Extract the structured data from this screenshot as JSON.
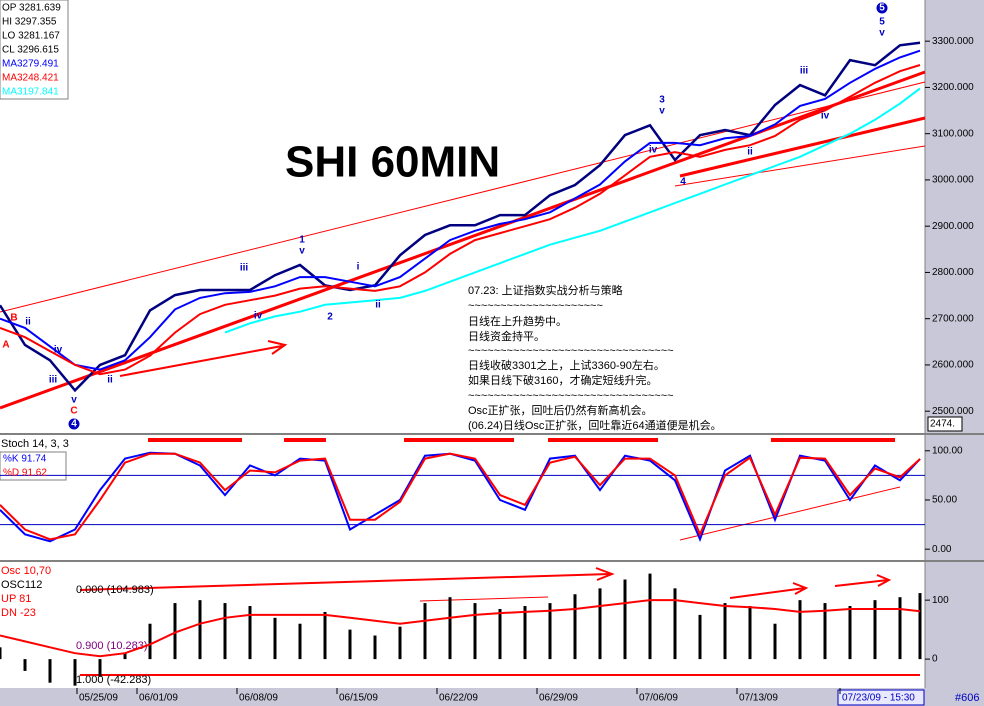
{
  "chart_data": [
    {
      "type": "line",
      "title": "SHI 60MIN",
      "info": [
        "OP 3281.639",
        "HI 3297.355",
        "LO 3281.167",
        "CL 3296.615"
      ],
      "x": [
        0,
        5,
        10,
        15,
        20,
        25,
        30,
        35,
        40,
        45,
        50,
        55,
        60,
        65,
        70,
        75,
        80,
        85,
        90,
        95,
        100,
        105,
        110,
        115,
        120,
        125,
        130,
        135,
        140,
        145,
        150,
        155,
        160,
        165,
        170,
        175,
        180,
        184
      ],
      "xlim": [
        0,
        185
      ],
      "xticks": [
        {
          "value": 15.4,
          "label": "05/25/09"
        },
        {
          "value": 27.4,
          "label": "06/01/09"
        },
        {
          "value": 47.4,
          "label": "06/08/09"
        },
        {
          "value": 67.4,
          "label": "06/15/09"
        },
        {
          "value": 87.4,
          "label": "06/22/09"
        },
        {
          "value": 107.4,
          "label": "06/29/09"
        },
        {
          "value": 127.4,
          "label": "07/06/09"
        },
        {
          "value": 147.4,
          "label": "07/13/09"
        },
        {
          "value": 168,
          "label": "07/23/09 - 15:30"
        }
      ],
      "footer_label": "#606",
      "ylim": [
        2455,
        3389
      ],
      "yticks": [
        {
          "value": 2500,
          "label": "2500.000"
        },
        {
          "value": 2600,
          "label": "2600.000"
        },
        {
          "value": 2700,
          "label": "2700.000"
        },
        {
          "value": 2800,
          "label": "2800.000"
        },
        {
          "value": 2900,
          "label": "2900.000"
        },
        {
          "value": 3000,
          "label": "3000.000"
        },
        {
          "value": 3100,
          "label": "3100.000"
        },
        {
          "value": 3200,
          "label": "3200.000"
        },
        {
          "value": 3300,
          "label": "3300.000"
        }
      ],
      "last_label": "2474.",
      "series": [
        {
          "color": "#000080",
          "values": [
            2729,
            2643,
            2610,
            2545,
            2600,
            2621,
            2718,
            2751,
            2762,
            2762,
            2762,
            2794,
            2816,
            2772,
            2762,
            2772,
            2837,
            2881,
            2902,
            2902,
            2924,
            2924,
            2967,
            2989,
            3032,
            3097,
            3118,
            3043,
            3097,
            3108,
            3097,
            3162,
            3205,
            3183,
            3259,
            3248,
            3291,
            3296.615
          ]
        },
        {
          "name": "MA3279.491",
          "color": "#0000ff",
          "values": [
            2700,
            2680,
            2640,
            2600,
            2590,
            2610,
            2660,
            2720,
            2745,
            2755,
            2758,
            2770,
            2790,
            2790,
            2780,
            2770,
            2790,
            2830,
            2870,
            2890,
            2905,
            2915,
            2930,
            2960,
            2990,
            3040,
            3080,
            3080,
            3075,
            3090,
            3095,
            3120,
            3160,
            3175,
            3210,
            3240,
            3265,
            3279.491
          ]
        },
        {
          "name": "MA3248.421",
          "color": "#ff0000",
          "values": [
            2680,
            2660,
            2630,
            2600,
            2580,
            2590,
            2620,
            2670,
            2710,
            2730,
            2740,
            2750,
            2765,
            2770,
            2765,
            2760,
            2770,
            2800,
            2840,
            2870,
            2885,
            2900,
            2915,
            2940,
            2970,
            3010,
            3050,
            3060,
            3050,
            3065,
            3075,
            3095,
            3130,
            3150,
            3180,
            3210,
            3235,
            3248.421
          ]
        },
        {
          "name": "MA3197.841",
          "color": "#00ffff",
          "values": [
            null,
            null,
            null,
            null,
            null,
            null,
            null,
            null,
            null,
            2670,
            2690,
            2705,
            2715,
            2730,
            2735,
            2740,
            2745,
            2760,
            2780,
            2800,
            2820,
            2840,
            2860,
            2875,
            2890,
            2910,
            2930,
            2950,
            2970,
            2990,
            3010,
            3030,
            3050,
            3075,
            3100,
            3130,
            3165,
            3197.841
          ]
        }
      ],
      "commentary": [
        "07.23: 上证指数实战分析与策略",
        "~~~~~~~~~~~~~~~~~~~~~",
        "日线在上升趋势中。",
        "日线资金持平。",
        "~~~~~~~~~~~~~~~~~~~~~~~~~~~~~~~~",
        "日线收破3301之上，上试3360-90左右。",
        "如果日线下破3160，才确定短线升完。",
        "~~~~~~~~~~~~~~~~~~~~~~~~~~~~~~~~",
        "Osc正扩张，回吐后仍然有新高机会。",
        "(06.24)日线Osc正扩张，回吐靠近64通道便是机会。"
      ],
      "annotations": [
        "1",
        "v",
        "2",
        "3",
        "v",
        "4",
        "5",
        "v",
        "iii",
        "iv",
        "i",
        "ii",
        "iii",
        "iv",
        "ii",
        "iv",
        "B",
        "A",
        "C",
        "v",
        "ii",
        "iii",
        "iv",
        "ii",
        "4",
        "5"
      ]
    },
    {
      "type": "line",
      "title": "Stoch 14, 3, 3",
      "x": [
        0,
        5,
        10,
        15,
        20,
        25,
        30,
        35,
        40,
        45,
        50,
        55,
        60,
        65,
        70,
        75,
        80,
        85,
        90,
        95,
        100,
        105,
        110,
        115,
        120,
        125,
        130,
        135,
        140,
        145,
        150,
        155,
        160,
        165,
        170,
        175,
        180,
        184
      ],
      "xlim": [
        0,
        185
      ],
      "ylim": [
        -11,
        114
      ],
      "yticks": [
        {
          "value": 0,
          "label": "0.00"
        },
        {
          "value": 50,
          "label": "50.00"
        },
        {
          "value": 100,
          "label": "100.00"
        }
      ],
      "levels": [
        25,
        75
      ],
      "series": [
        {
          "name": "%K  91.74",
          "color": "#0000ff",
          "values": [
            40,
            15,
            8,
            20,
            60,
            92,
            98,
            97,
            85,
            55,
            85,
            75,
            92,
            90,
            20,
            35,
            50,
            95,
            97,
            90,
            50,
            40,
            92,
            95,
            60,
            95,
            90,
            70,
            10,
            80,
            95,
            30,
            95,
            90,
            50,
            85,
            70,
            91.74
          ]
        },
        {
          "name": "%D  91.62",
          "color": "#ff0000",
          "values": [
            45,
            20,
            10,
            15,
            50,
            88,
            97,
            97,
            88,
            60,
            80,
            78,
            90,
            92,
            30,
            30,
            48,
            92,
            97,
            92,
            55,
            45,
            88,
            94,
            65,
            92,
            92,
            75,
            15,
            75,
            93,
            35,
            93,
            92,
            55,
            82,
            73,
            91.62
          ]
        }
      ]
    },
    {
      "type": "bar",
      "title": "Osc 10,70",
      "x": [
        0,
        5,
        10,
        15,
        20,
        25,
        30,
        35,
        40,
        45,
        50,
        55,
        60,
        65,
        70,
        75,
        80,
        85,
        90,
        95,
        100,
        105,
        110,
        115,
        120,
        125,
        130,
        135,
        140,
        145,
        150,
        155,
        160,
        165,
        170,
        175,
        180,
        184
      ],
      "xlim": [
        0,
        185
      ],
      "ylim": [
        -49,
        163
      ],
      "yticks": [
        0,
        100
      ],
      "labels": [
        "OSC112",
        "UP  81",
        "DN  -23"
      ],
      "annotations": [
        "0.000 (104.983)",
        "0.900 (10.283)",
        "1.000 (-42.283)"
      ],
      "series": [
        {
          "color": "#000000",
          "values": [
            20,
            -20,
            -40,
            -45,
            -30,
            10,
            60,
            95,
            100,
            95,
            90,
            70,
            60,
            80,
            50,
            40,
            55,
            95,
            105,
            95,
            85,
            90,
            95,
            110,
            120,
            135,
            145,
            120,
            75,
            95,
            90,
            60,
            100,
            95,
            90,
            100,
            105,
            112
          ]
        },
        {
          "color": "#ff0000",
          "style": "line",
          "values": [
            40,
            30,
            20,
            10,
            5,
            10,
            25,
            45,
            60,
            70,
            75,
            75,
            75,
            75,
            70,
            65,
            60,
            65,
            70,
            75,
            78,
            80,
            82,
            85,
            90,
            95,
            100,
            100,
            95,
            90,
            88,
            85,
            80,
            82,
            85,
            85,
            85,
            81
          ]
        }
      ]
    }
  ]
}
